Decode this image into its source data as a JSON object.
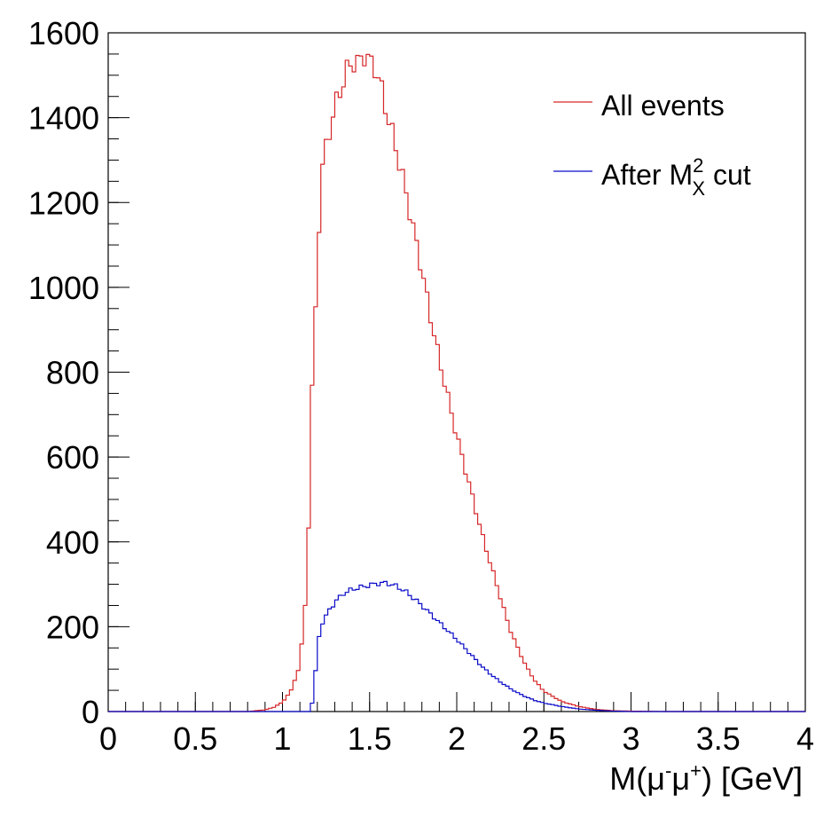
{
  "chart_data": {
    "type": "histogram-step",
    "xlabel": "M(μ⁻μ⁺) [GeV]",
    "xlabel_parts": {
      "base": "M(",
      "mu1": "μ",
      "sup1": "-",
      "mu2": "μ",
      "sup2": "+",
      "tail": ") [GeV]"
    },
    "xlim": [
      0,
      4
    ],
    "ylim": [
      0,
      1600
    ],
    "x_ticks": [
      0,
      0.5,
      1,
      1.5,
      2,
      2.5,
      3,
      3.5,
      4
    ],
    "x_tick_labels": [
      "0",
      "0.5",
      "1",
      "1.5",
      "2",
      "2.5",
      "3",
      "3.5",
      "4"
    ],
    "y_ticks": [
      0,
      200,
      400,
      600,
      800,
      1000,
      1200,
      1400,
      1600
    ],
    "y_tick_labels": [
      "0",
      "200",
      "400",
      "600",
      "800",
      "1000",
      "1200",
      "1400",
      "1600"
    ],
    "legend": {
      "placement": "top-right",
      "entries": [
        {
          "label": "All events",
          "color": "#d62728"
        },
        {
          "label_parts": {
            "before": "After M",
            "sup": "2",
            "sub": "X",
            "after": " cut"
          },
          "color": "#0a0ac8"
        }
      ]
    },
    "series": [
      {
        "color": "#d62728",
        "points": [
          [
            0.8,
            0
          ],
          [
            0.9,
            4
          ],
          [
            0.95,
            10
          ],
          [
            1.0,
            22
          ],
          [
            1.05,
            50
          ],
          [
            1.1,
            110
          ],
          [
            1.13,
            250
          ],
          [
            1.15,
            440
          ],
          [
            1.17,
            760
          ],
          [
            1.2,
            1040
          ],
          [
            1.22,
            1260
          ],
          [
            1.25,
            1330
          ],
          [
            1.28,
            1390
          ],
          [
            1.32,
            1450
          ],
          [
            1.36,
            1500
          ],
          [
            1.4,
            1535
          ],
          [
            1.43,
            1525
          ],
          [
            1.47,
            1550
          ],
          [
            1.5,
            1530
          ],
          [
            1.53,
            1520
          ],
          [
            1.56,
            1480
          ],
          [
            1.6,
            1410
          ],
          [
            1.65,
            1330
          ],
          [
            1.7,
            1240
          ],
          [
            1.75,
            1140
          ],
          [
            1.8,
            1040
          ],
          [
            1.85,
            930
          ],
          [
            1.9,
            830
          ],
          [
            1.95,
            740
          ],
          [
            2.0,
            650
          ],
          [
            2.05,
            570
          ],
          [
            2.1,
            490
          ],
          [
            2.15,
            410
          ],
          [
            2.2,
            340
          ],
          [
            2.25,
            270
          ],
          [
            2.3,
            200
          ],
          [
            2.35,
            150
          ],
          [
            2.4,
            105
          ],
          [
            2.45,
            72
          ],
          [
            2.5,
            48
          ],
          [
            2.6,
            24
          ],
          [
            2.7,
            12
          ],
          [
            2.8,
            5
          ],
          [
            2.9,
            2
          ],
          [
            3.0,
            1
          ],
          [
            3.2,
            0
          ],
          [
            4.0,
            0
          ]
        ]
      },
      {
        "color": "#0a0ac8",
        "points": [
          [
            1.15,
            0
          ],
          [
            1.18,
            30
          ],
          [
            1.2,
            160
          ],
          [
            1.23,
            210
          ],
          [
            1.27,
            240
          ],
          [
            1.31,
            262
          ],
          [
            1.35,
            278
          ],
          [
            1.4,
            288
          ],
          [
            1.45,
            293
          ],
          [
            1.5,
            298
          ],
          [
            1.55,
            302
          ],
          [
            1.6,
            303
          ],
          [
            1.65,
            296
          ],
          [
            1.7,
            285
          ],
          [
            1.75,
            268
          ],
          [
            1.8,
            250
          ],
          [
            1.85,
            230
          ],
          [
            1.9,
            210
          ],
          [
            1.95,
            190
          ],
          [
            2.0,
            170
          ],
          [
            2.05,
            148
          ],
          [
            2.1,
            126
          ],
          [
            2.15,
            104
          ],
          [
            2.2,
            86
          ],
          [
            2.25,
            70
          ],
          [
            2.3,
            56
          ],
          [
            2.35,
            44
          ],
          [
            2.4,
            34
          ],
          [
            2.45,
            26
          ],
          [
            2.5,
            20
          ],
          [
            2.6,
            12
          ],
          [
            2.7,
            6
          ],
          [
            2.8,
            3
          ],
          [
            2.9,
            1
          ],
          [
            3.0,
            0
          ],
          [
            4.0,
            0
          ]
        ]
      }
    ]
  }
}
